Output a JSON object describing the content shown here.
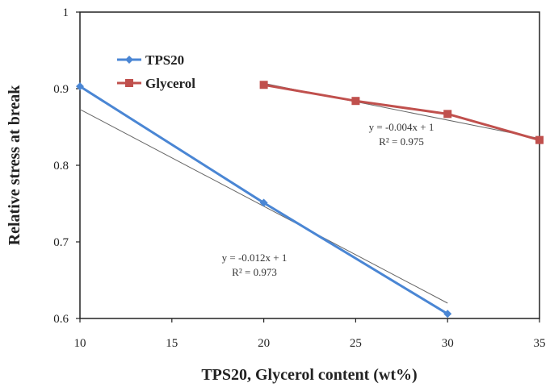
{
  "chart_data": {
    "type": "line",
    "title": "",
    "xlabel": "TPS20, Glycerol content (wt%)",
    "ylabel": "Relative stress at break",
    "xlim": [
      10,
      35
    ],
    "ylim": [
      0.6,
      1.0
    ],
    "x_ticks": [
      "10",
      "15",
      "20",
      "25",
      "30",
      "35"
    ],
    "y_ticks": [
      "0.6",
      "0.7",
      "0.8",
      "0.9",
      "1"
    ],
    "grid": false,
    "legend_position": "top-left",
    "series": [
      {
        "name": "TPS20",
        "color": "#4a86d4",
        "marker": "diamond",
        "points": [
          [
            10,
            0.903
          ],
          [
            20,
            0.751
          ],
          [
            30,
            0.606
          ]
        ],
        "trendline": {
          "points": [
            [
              10,
              0.873
            ],
            [
              30,
              0.62
            ]
          ],
          "color": "#666666"
        },
        "annotation": [
          "y = -0.012x + 1",
          "R² = 0.973"
        ]
      },
      {
        "name": "Glycerol",
        "color": "#c0504d",
        "marker": "square",
        "points": [
          [
            20,
            0.905
          ],
          [
            25,
            0.884
          ],
          [
            30,
            0.867
          ],
          [
            35,
            0.833
          ]
        ],
        "trendline": {
          "points": [
            [
              20,
              0.907
            ],
            [
              35,
              0.835
            ]
          ],
          "color": "#666666"
        },
        "annotation": [
          "y = -0.004x + 1",
          "R² = 0.975"
        ]
      }
    ]
  }
}
